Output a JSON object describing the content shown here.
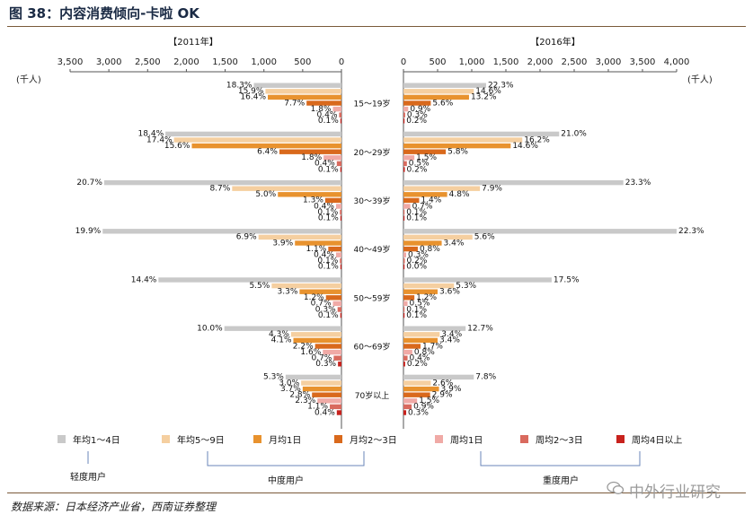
{
  "figure_title": "图 38：内容消费倾向-卡啦 OK",
  "source": "数据来源：日本经济产业省，西南证券整理",
  "watermark": "中外行业研究",
  "colors": {
    "annual_1_4": "#c9c9c9",
    "annual_5_9": "#f5cfa0",
    "monthly_1": "#e8922e",
    "monthly_2_3": "#d9691c",
    "weekly_1": "#f0aaa6",
    "weekly_2_3": "#d96a5e",
    "weekly_4plus": "#c8221d",
    "rule": "#7a5a3a",
    "axis": "#555555"
  },
  "chart_data": [
    {
      "type": "bar",
      "orientation": "horizontal",
      "direction": "right-to-left",
      "title": "【2011年】",
      "unit_label": "(千人)",
      "xlim": [
        0,
        3500
      ],
      "xticks": [
        0,
        500,
        1000,
        1500,
        2000,
        2500,
        3000,
        3500
      ],
      "xtick_labels": [
        "0",
        "500",
        "1,000",
        "1,500",
        "2,000",
        "2,500",
        "3,000",
        "3,500"
      ],
      "categories": [
        "15～19岁",
        "20～29岁",
        "30～39岁",
        "40～49岁",
        "50～59岁",
        "60～69岁",
        "70岁以上"
      ],
      "series": [
        {
          "name": "年均1～4日",
          "color_key": "annual_1_4",
          "values": [
            1130,
            2270,
            3060,
            3080,
            2360,
            1510,
            720
          ],
          "labels": [
            "18.3%",
            "18.4%",
            "20.7%",
            "19.9%",
            "14.4%",
            "10.0%",
            "5.3%"
          ]
        },
        {
          "name": "年均5～9日",
          "color_key": "annual_5_9",
          "values": [
            980,
            2160,
            1410,
            1070,
            900,
            650,
            520
          ],
          "labels": [
            "15.9%",
            "17.4%",
            "8.7%",
            "6.9%",
            "5.5%",
            "4.3%",
            "3.0%"
          ]
        },
        {
          "name": "月均1日",
          "color_key": "monthly_1",
          "values": [
            950,
            1930,
            820,
            600,
            540,
            620,
            500
          ],
          "labels": [
            "16.4%",
            "15.6%",
            "5.0%",
            "3.9%",
            "3.3%",
            "4.1%",
            "3.7%"
          ]
        },
        {
          "name": "月均2～3日",
          "color_key": "monthly_2_3",
          "values": [
            450,
            800,
            210,
            170,
            200,
            340,
            380
          ],
          "labels": [
            "7.7%",
            "6.4%",
            "1.3%",
            "1.1%",
            "1.2%",
            "2.2%",
            "2.8%"
          ]
        },
        {
          "name": "周均1日",
          "color_key": "weekly_1",
          "values": [
            110,
            230,
            70,
            70,
            110,
            240,
            310
          ],
          "labels": [
            "1.8%",
            "1.8%",
            "0.4%",
            "0.4%",
            "0.7%",
            "1.6%",
            "2.3%"
          ]
        },
        {
          "name": "周均2～3日",
          "color_key": "weekly_2_3",
          "values": [
            30,
            60,
            20,
            20,
            50,
            100,
            150
          ],
          "labels": [
            "0.4%",
            "0.4%",
            "0.1%",
            "0.1%",
            "0.3%",
            "0.7%",
            "1.1%"
          ]
        },
        {
          "name": "周均4日以上",
          "color_key": "weekly_4plus",
          "values": [
            10,
            15,
            10,
            10,
            15,
            45,
            60
          ],
          "labels": [
            "0.1%",
            "0.1%",
            "0.1%",
            "0.1%",
            "0.1%",
            "0.3%",
            "0.4%"
          ]
        }
      ]
    },
    {
      "type": "bar",
      "orientation": "horizontal",
      "direction": "left-to-right",
      "title": "【2016年】",
      "unit_label": "(千人)",
      "xlim": [
        0,
        4000
      ],
      "xticks": [
        0,
        500,
        1000,
        1500,
        2000,
        2500,
        3000,
        3500,
        4000
      ],
      "xtick_labels": [
        "0",
        "500",
        "1,000",
        "1,500",
        "2,000",
        "2,500",
        "3,000",
        "3,500",
        "4,000"
      ],
      "categories": [
        "15～19岁",
        "20～29岁",
        "30～39岁",
        "40～49岁",
        "50～59岁",
        "60～69岁",
        "70岁以上"
      ],
      "series": [
        {
          "name": "年均1～4日",
          "color_key": "annual_1_4",
          "values": [
            1210,
            2280,
            3220,
            4000,
            2170,
            910,
            1030
          ],
          "labels": [
            "22.3%",
            "21.0%",
            "23.3%",
            "22.3%",
            "17.5%",
            "12.7%",
            "7.8%"
          ]
        },
        {
          "name": "年均5～9日",
          "color_key": "annual_5_9",
          "values": [
            1030,
            1740,
            1120,
            1010,
            740,
            530,
            400
          ],
          "labels": [
            "14.6%",
            "16.2%",
            "7.9%",
            "5.6%",
            "5.3%",
            "3.4%",
            "2.6%"
          ]
        },
        {
          "name": "月均1日",
          "color_key": "monthly_1",
          "values": [
            960,
            1570,
            640,
            560,
            500,
            500,
            520
          ],
          "labels": [
            "13.2%",
            "14.6%",
            "4.8%",
            "3.4%",
            "3.6%",
            "3.4%",
            "3.9%"
          ]
        },
        {
          "name": "月均2～3日",
          "color_key": "monthly_2_3",
          "values": [
            400,
            620,
            230,
            210,
            160,
            250,
            390
          ],
          "labels": [
            "5.6%",
            "5.8%",
            "1.4%",
            "0.8%",
            "1.2%",
            "1.7%",
            "2.9%"
          ]
        },
        {
          "name": "周均1日",
          "color_key": "weekly_1",
          "values": [
            70,
            160,
            100,
            40,
            60,
            130,
            200
          ],
          "labels": [
            "0.9%",
            "1.5%",
            "0.7%",
            "0.3%",
            "0.5%",
            "0.8%",
            "1.5%"
          ]
        },
        {
          "name": "周均2～3日",
          "color_key": "weekly_2_3",
          "values": [
            25,
            50,
            10,
            20,
            10,
            60,
            120
          ],
          "labels": [
            "0.3%",
            "0.5%",
            "0.1%",
            "0.2%",
            "0.1%",
            "0.4%",
            "0.9%"
          ]
        },
        {
          "name": "周均4日以上",
          "color_key": "weekly_4plus",
          "values": [
            15,
            20,
            10,
            5,
            10,
            25,
            40
          ],
          "labels": [
            "0.2%",
            "0.2%",
            "0.1%",
            "0.0%",
            "0.1%",
            "0.2%",
            "0.3%"
          ]
        }
      ]
    }
  ],
  "legend": [
    {
      "name": "年均1～4日",
      "color_key": "annual_1_4"
    },
    {
      "name": "年均5～9日",
      "color_key": "annual_5_9"
    },
    {
      "name": "月均1日",
      "color_key": "monthly_1"
    },
    {
      "name": "月均2～3日",
      "color_key": "monthly_2_3"
    },
    {
      "name": "周均1日",
      "color_key": "weekly_1"
    },
    {
      "name": "周均2～3日",
      "color_key": "weekly_2_3"
    },
    {
      "name": "周均4日以上",
      "color_key": "weekly_4plus"
    }
  ],
  "user_groups": {
    "light": "轻度用户",
    "medium": "中度用户",
    "heavy": "重度用户"
  }
}
